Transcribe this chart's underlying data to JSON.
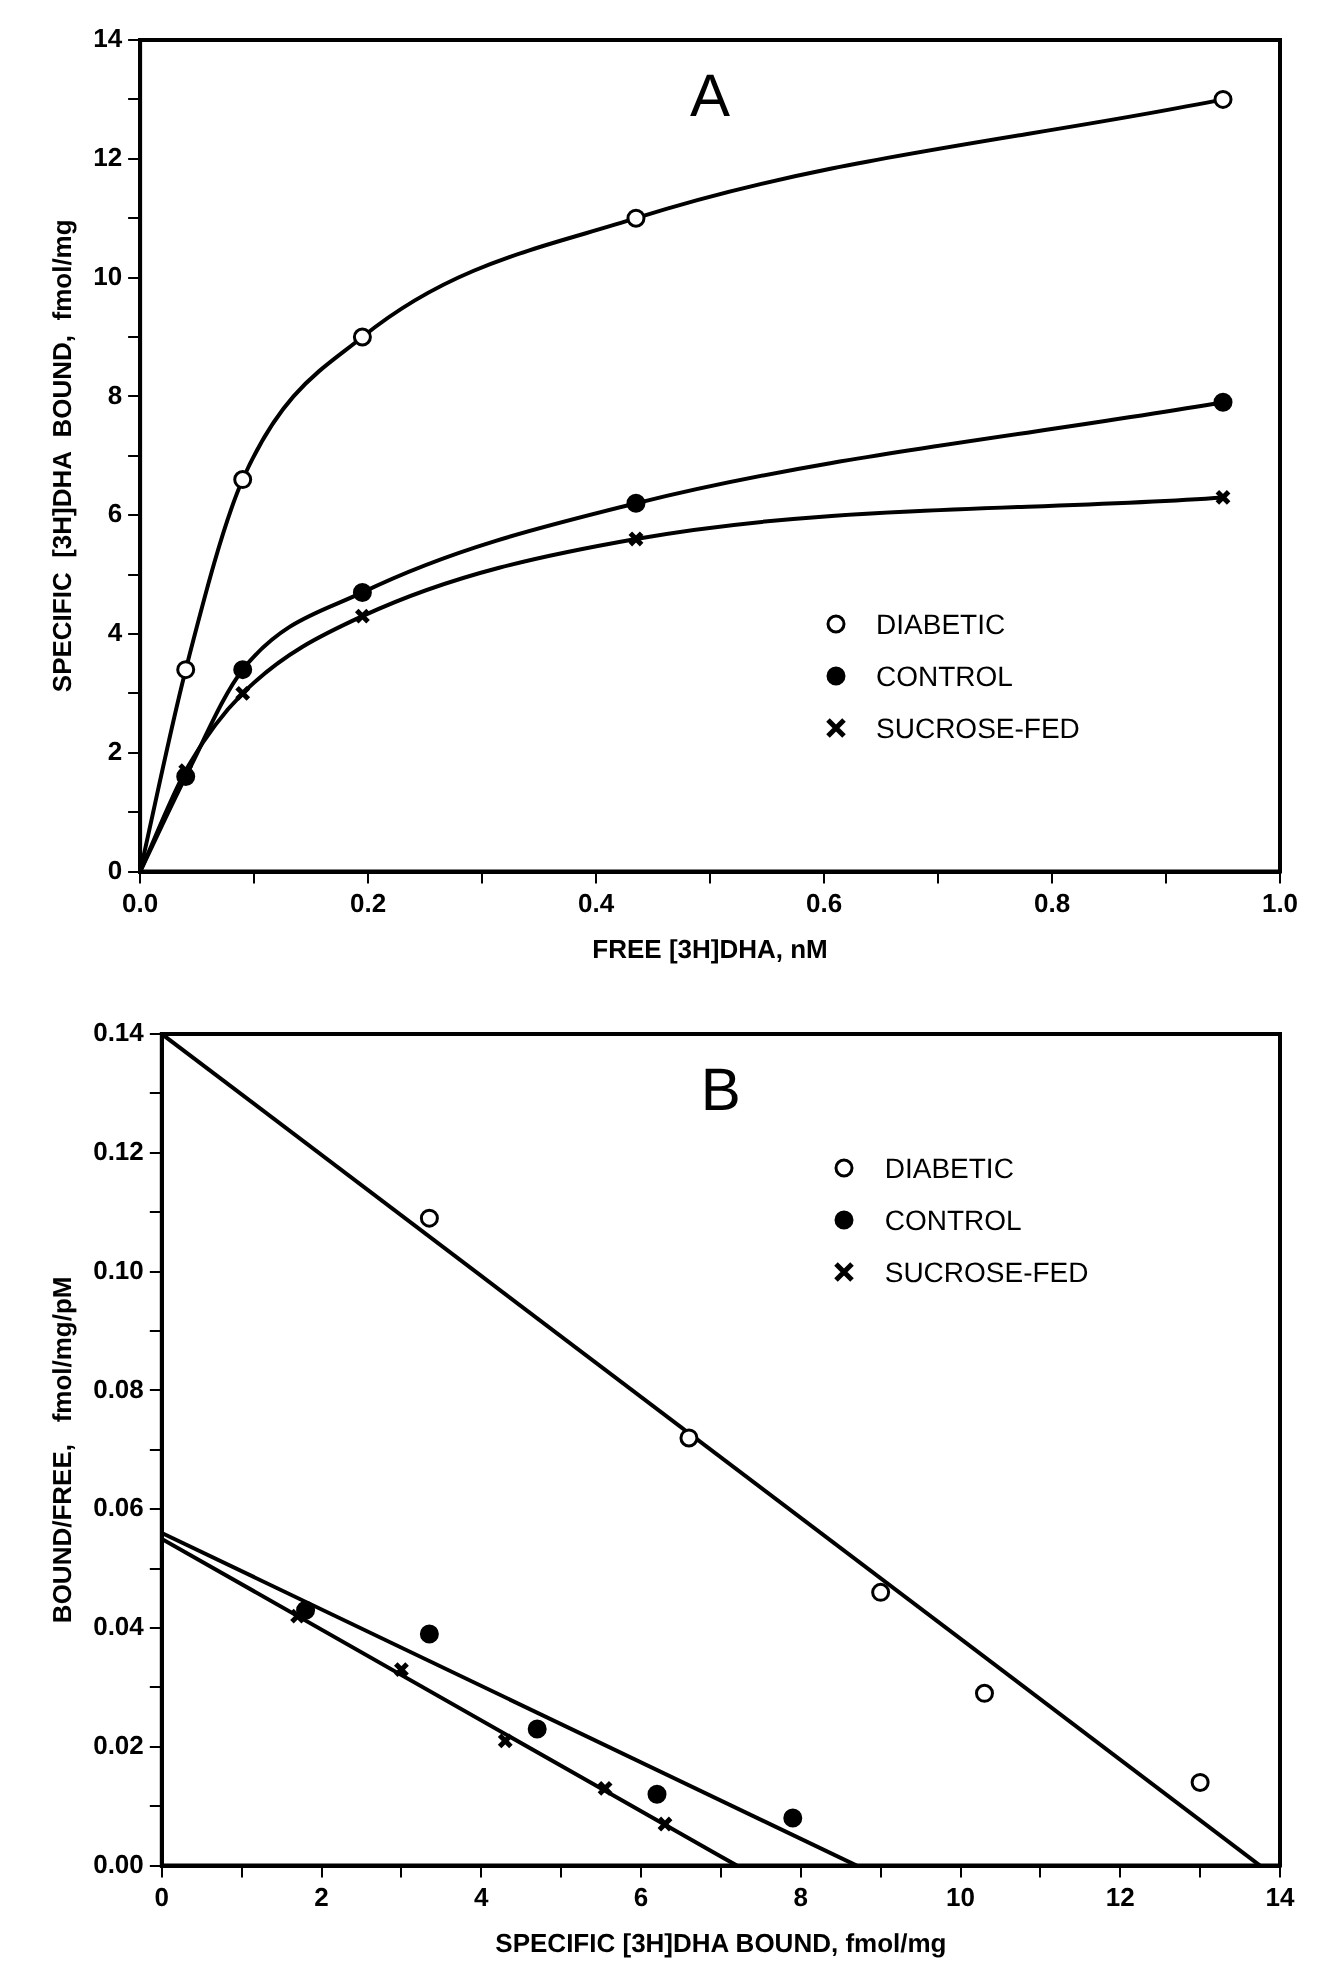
{
  "chart_data": [
    {
      "type": "scatter",
      "title": "A",
      "xlabel": "FREE [3H]DHA, nM",
      "ylabel": "SPECIFIC  [3H]DHA  BOUND,  fmol/mg",
      "xlim": [
        0,
        1
      ],
      "ylim": [
        0,
        14
      ],
      "xticks": [
        {
          "value": 0,
          "label": "0.0"
        },
        {
          "value": 0.1,
          "label": null
        },
        {
          "value": 0.2,
          "label": "0.2"
        },
        {
          "value": 0.3,
          "label": null
        },
        {
          "value": 0.4,
          "label": "0.4"
        },
        {
          "value": 0.5,
          "label": null
        },
        {
          "value": 0.6,
          "label": "0.6"
        },
        {
          "value": 0.7,
          "label": null
        },
        {
          "value": 0.8,
          "label": "0.8"
        },
        {
          "value": 0.9,
          "label": null
        },
        {
          "value": 1,
          "label": "1.0"
        }
      ],
      "yticks": [
        0,
        {
          "value": 1,
          "label": null
        },
        2,
        {
          "value": 3,
          "label": null
        },
        4,
        {
          "value": 5,
          "label": null
        },
        6,
        {
          "value": 7,
          "label": null
        },
        8,
        {
          "value": 9,
          "label": null
        },
        10,
        {
          "value": 11,
          "label": null
        },
        12,
        {
          "value": 13,
          "label": null
        },
        14
      ],
      "grid": false,
      "legend": "bottom right",
      "series": [
        {
          "name": "DIABETIC",
          "color": "#ffffff",
          "marker": "circle",
          "x": [
            0.04,
            0.09,
            0.195,
            0.435,
            0.95
          ],
          "values": [
            3.4,
            6.6,
            9.0,
            11.0,
            13.0
          ]
        },
        {
          "name": "CONTROL",
          "color": "#000000",
          "marker": "circle",
          "x": [
            0.04,
            0.09,
            0.195,
            0.435,
            0.95
          ],
          "values": [
            1.6,
            3.4,
            4.7,
            6.2,
            7.9
          ]
        },
        {
          "name": "SUCROSE-FED",
          "color": "#000000",
          "marker": "cross",
          "x": [
            0.04,
            0.09,
            0.195,
            0.435,
            0.95
          ],
          "values": [
            1.7,
            3.0,
            4.3,
            5.6,
            6.3
          ]
        },
        {
          "type": "line",
          "color": "#000000",
          "marker": "none",
          "x": [
            0,
            0.04,
            0.09,
            0.195,
            0.435,
            0.95
          ],
          "values": [
            0,
            3.4,
            6.6,
            9.0,
            11.0,
            13.0
          ]
        },
        {
          "type": "line",
          "color": "#000000",
          "marker": "none",
          "x": [
            0,
            0.04,
            0.09,
            0.195,
            0.435,
            0.95
          ],
          "values": [
            0,
            1.6,
            3.4,
            4.7,
            6.2,
            7.9
          ]
        },
        {
          "type": "line",
          "color": "#000000",
          "marker": "none",
          "x": [
            0,
            0.04,
            0.09,
            0.195,
            0.435,
            0.95
          ],
          "values": [
            0,
            1.7,
            3.0,
            4.3,
            5.6,
            6.3
          ]
        }
      ]
    },
    {
      "type": "scatter",
      "title": "B",
      "xlabel": "SPECIFIC [3H]DHA BOUND, fmol/mg",
      "ylabel": "BOUND/FREE,   fmol/mg/pM",
      "xlim": [
        0,
        14
      ],
      "ylim": [
        0,
        0.14
      ],
      "xticks": [
        0,
        {
          "value": 1,
          "label": null
        },
        2,
        {
          "value": 3,
          "label": null
        },
        4,
        {
          "value": 5,
          "label": null
        },
        6,
        {
          "value": 7,
          "label": null
        },
        8,
        {
          "value": 9,
          "label": null
        },
        10,
        {
          "value": 11,
          "label": null
        },
        12,
        {
          "value": 13,
          "label": null
        },
        14
      ],
      "yticks": [
        {
          "value": 0,
          "label": "0.00"
        },
        {
          "value": 0.01,
          "label": null
        },
        {
          "value": 0.02,
          "label": "0.02"
        },
        {
          "value": 0.03,
          "label": null
        },
        {
          "value": 0.04,
          "label": "0.04"
        },
        {
          "value": 0.05,
          "label": null
        },
        {
          "value": 0.06,
          "label": "0.06"
        },
        {
          "value": 0.07,
          "label": null
        },
        {
          "value": 0.08,
          "label": "0.08"
        },
        {
          "value": 0.09,
          "label": null
        },
        {
          "value": 0.1,
          "label": "0.10"
        },
        {
          "value": 0.11,
          "label": null
        },
        {
          "value": 0.12,
          "label": "0.12"
        },
        {
          "value": 0.13,
          "label": null
        },
        {
          "value": 0.14,
          "label": "0.14"
        }
      ],
      "grid": false,
      "legend": "top right",
      "series": [
        {
          "name": "DIABETIC",
          "color": "#ffffff",
          "marker": "circle",
          "x": [
            3.35,
            6.6,
            9.0,
            10.3,
            13.0
          ],
          "values": [
            0.109,
            0.072,
            0.046,
            0.029,
            0.014
          ]
        },
        {
          "name": "CONTROL",
          "color": "#000000",
          "marker": "circle",
          "x": [
            1.8,
            3.35,
            4.7,
            6.2,
            7.9
          ],
          "values": [
            0.043,
            0.039,
            0.023,
            0.012,
            0.008
          ]
        },
        {
          "name": "SUCROSE-FED",
          "color": "#000000",
          "marker": "cross",
          "x": [
            1.7,
            3.0,
            4.3,
            5.55,
            6.3
          ],
          "values": [
            0.042,
            0.033,
            0.021,
            0.013,
            0.007
          ]
        },
        {
          "type": "line",
          "color": "#000000",
          "marker": "none",
          "x": [
            0,
            13.75
          ],
          "values": [
            0.14,
            0
          ]
        },
        {
          "type": "line",
          "color": "#000000",
          "marker": "none",
          "x": [
            0,
            8.7
          ],
          "values": [
            0.056,
            0
          ]
        },
        {
          "type": "line",
          "color": "#000000",
          "marker": "none",
          "x": [
            0,
            7.2
          ],
          "values": [
            0.055,
            0
          ]
        }
      ]
    }
  ]
}
